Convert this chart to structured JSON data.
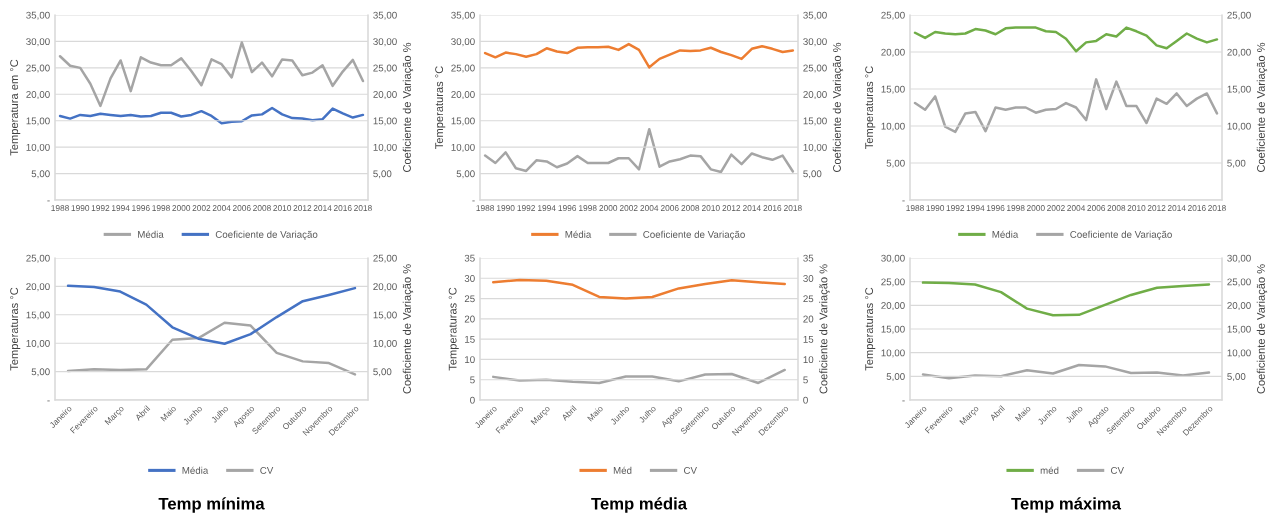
{
  "chart_data": [
    {
      "type": "line",
      "ylabel": "Temperatura em °C",
      "y2label": "Coeficiente de Variação %",
      "x": [
        1988,
        1989,
        1990,
        1991,
        1992,
        1993,
        1994,
        1995,
        1996,
        1997,
        1998,
        1999,
        2000,
        2001,
        2002,
        2003,
        2004,
        2005,
        2006,
        2007,
        2008,
        2009,
        2010,
        2011,
        2012,
        2013,
        2014,
        2015,
        2016,
        2017,
        2018
      ],
      "xlim": [
        1987.5,
        2018.5
      ],
      "xticks": [
        1988,
        1990,
        1992,
        1994,
        1996,
        1998,
        2000,
        2002,
        2004,
        2006,
        2008,
        2010,
        2012,
        2014,
        2016,
        2018
      ],
      "ylim": [
        0,
        35
      ],
      "yticks": [
        {
          "value": 0,
          "label": "-"
        },
        {
          "value": 5,
          "label": "5,00"
        },
        {
          "value": 10,
          "label": "10,00"
        },
        {
          "value": 15,
          "label": "15,00"
        },
        {
          "value": 20,
          "label": "20,00"
        },
        {
          "value": 25,
          "label": "25,00"
        },
        {
          "value": 30,
          "label": "30,00"
        },
        {
          "value": 35,
          "label": "35,00"
        }
      ],
      "y2lim": [
        0,
        35
      ],
      "y2ticks": [
        {
          "value": 5,
          "label": "5,00"
        },
        {
          "value": 10,
          "label": "10,00"
        },
        {
          "value": 15,
          "label": "15,00"
        },
        {
          "value": 20,
          "label": "20,00"
        },
        {
          "value": 25,
          "label": "25,00"
        },
        {
          "value": 30,
          "label": "30,00"
        },
        {
          "value": 35,
          "label": "35,00"
        }
      ],
      "grid": "y",
      "legend": "bottom",
      "series": [
        {
          "name": "Média",
          "color": "#a5a5a5",
          "values": [
            27.2,
            25.4,
            25.0,
            22.0,
            17.8,
            23.0,
            26.4,
            20.6,
            27.0,
            26.0,
            25.5,
            25.5,
            26.8,
            24.4,
            21.7,
            26.6,
            25.7,
            23.2,
            29.8,
            24.2,
            26.0,
            23.4,
            26.6,
            26.4,
            23.6,
            24.1,
            25.5,
            21.6,
            24.3,
            26.5,
            22.5
          ]
        },
        {
          "name": "Coeficiente de Variação",
          "color": "#4472c4",
          "axis": "y2",
          "values": [
            15.9,
            15.4,
            16.1,
            15.9,
            16.3,
            16.1,
            15.9,
            16.1,
            15.8,
            15.9,
            16.5,
            16.5,
            15.8,
            16.1,
            16.8,
            15.9,
            14.5,
            14.8,
            14.9,
            16.0,
            16.2,
            17.4,
            16.2,
            15.5,
            15.4,
            15.1,
            15.3,
            17.3,
            16.4,
            15.6,
            16.1
          ]
        }
      ]
    },
    {
      "type": "line",
      "ylabel": "Temperaturas °C",
      "y2label": "Coeficiente de Variação %",
      "x": [
        1988,
        1989,
        1990,
        1991,
        1992,
        1993,
        1994,
        1995,
        1996,
        1997,
        1998,
        1999,
        2000,
        2001,
        2002,
        2003,
        2004,
        2005,
        2006,
        2007,
        2008,
        2009,
        2010,
        2011,
        2012,
        2013,
        2014,
        2015,
        2016,
        2017,
        2018
      ],
      "xlim": [
        1987.5,
        2018.5
      ],
      "xticks": [
        1988,
        1990,
        1992,
        1994,
        1996,
        1998,
        2000,
        2002,
        2004,
        2006,
        2008,
        2010,
        2012,
        2014,
        2016,
        2018
      ],
      "ylim": [
        0,
        35
      ],
      "yticks": [
        {
          "value": 0,
          "label": "-"
        },
        {
          "value": 5,
          "label": "5,00"
        },
        {
          "value": 10,
          "label": "10,00"
        },
        {
          "value": 15,
          "label": "15,00"
        },
        {
          "value": 20,
          "label": "20,00"
        },
        {
          "value": 25,
          "label": "25,00"
        },
        {
          "value": 30,
          "label": "30,00"
        },
        {
          "value": 35,
          "label": "35,00"
        }
      ],
      "y2lim": [
        0,
        35
      ],
      "y2ticks": [
        {
          "value": 5,
          "label": "5,00"
        },
        {
          "value": 10,
          "label": "10,00"
        },
        {
          "value": 15,
          "label": "15,00"
        },
        {
          "value": 20,
          "label": "20,00"
        },
        {
          "value": 25,
          "label": "25,00"
        },
        {
          "value": 30,
          "label": "30,00"
        },
        {
          "value": 35,
          "label": "35,00"
        }
      ],
      "grid": "y",
      "legend": "bottom",
      "series": [
        {
          "name": "Média",
          "color": "#ed7d31",
          "values": [
            27.8,
            27.0,
            27.9,
            27.6,
            27.1,
            27.6,
            28.7,
            28.1,
            27.8,
            28.8,
            28.9,
            28.9,
            29.0,
            28.4,
            29.5,
            28.4,
            25.1,
            26.7,
            27.5,
            28.3,
            28.2,
            28.3,
            28.8,
            28.0,
            27.4,
            26.7,
            28.6,
            29.1,
            28.6,
            28.0,
            28.3
          ]
        },
        {
          "name": "Coeficiente de Variação",
          "color": "#a5a5a5",
          "axis": "y2",
          "values": [
            8.4,
            7.0,
            9.0,
            6.0,
            5.5,
            7.5,
            7.3,
            6.2,
            6.9,
            8.3,
            7.0,
            7.0,
            7.0,
            7.9,
            7.9,
            5.8,
            13.4,
            6.3,
            7.3,
            7.7,
            8.4,
            8.3,
            5.8,
            5.3,
            8.6,
            6.8,
            8.8,
            8.1,
            7.6,
            8.4,
            5.4
          ]
        }
      ]
    },
    {
      "type": "line",
      "ylabel": "Temperaturas °C",
      "y2label": "Coeficiente de Variação %",
      "x": [
        1988,
        1989,
        1990,
        1991,
        1992,
        1993,
        1994,
        1995,
        1996,
        1997,
        1998,
        1999,
        2000,
        2001,
        2002,
        2003,
        2004,
        2005,
        2006,
        2007,
        2008,
        2009,
        2010,
        2011,
        2012,
        2013,
        2014,
        2015,
        2016,
        2017,
        2018
      ],
      "xlim": [
        1987.5,
        2018.5
      ],
      "xticks": [
        1988,
        1990,
        1992,
        1994,
        1996,
        1998,
        2000,
        2002,
        2004,
        2006,
        2008,
        2010,
        2012,
        2014,
        2016,
        2018
      ],
      "ylim": [
        0,
        25
      ],
      "yticks": [
        {
          "value": 0,
          "label": "-"
        },
        {
          "value": 5,
          "label": "5,00"
        },
        {
          "value": 10,
          "label": "10,00"
        },
        {
          "value": 15,
          "label": "15,00"
        },
        {
          "value": 20,
          "label": "20,00"
        },
        {
          "value": 25,
          "label": "25,00"
        }
      ],
      "y2lim": [
        0,
        25
      ],
      "y2ticks": [
        {
          "value": 5,
          "label": "5,00"
        },
        {
          "value": 10,
          "label": "10,00"
        },
        {
          "value": 15,
          "label": "15,00"
        },
        {
          "value": 20,
          "label": "20,00"
        },
        {
          "value": 25,
          "label": "25,00"
        }
      ],
      "grid": "y",
      "legend": "bottom",
      "series": [
        {
          "name": "Média",
          "color": "#70ad47",
          "values": [
            22.6,
            21.9,
            22.7,
            22.5,
            22.4,
            22.5,
            23.1,
            22.9,
            22.4,
            23.2,
            23.3,
            23.3,
            23.3,
            22.8,
            22.7,
            21.8,
            20.1,
            21.3,
            21.5,
            22.4,
            22.1,
            23.3,
            22.8,
            22.2,
            20.9,
            20.5,
            21.5,
            22.5,
            21.8,
            21.3,
            21.7
          ]
        },
        {
          "name": "Coeficiente de Variação",
          "color": "#a5a5a5",
          "axis": "y2",
          "values": [
            13.1,
            12.2,
            14.0,
            9.9,
            9.2,
            11.7,
            11.9,
            9.3,
            12.5,
            12.2,
            12.5,
            12.5,
            11.8,
            12.2,
            12.3,
            13.1,
            12.5,
            10.8,
            16.3,
            12.3,
            16.0,
            12.7,
            12.7,
            10.4,
            13.7,
            13.0,
            14.4,
            12.7,
            13.7,
            14.4,
            11.7
          ]
        }
      ]
    },
    {
      "type": "line",
      "title": "Temp mínima",
      "ylabel": "Temperaturas °C",
      "y2label": "Coeficiente de Variação %",
      "categories": [
        "Janeiro",
        "Fevereiro",
        "Março",
        "Abril",
        "Maio",
        "Junho",
        "Julho",
        "Agosto",
        "Setembro",
        "Outubro",
        "Novembro",
        "Dezembro"
      ],
      "ylim": [
        0,
        25
      ],
      "yticks": [
        {
          "value": 0,
          "label": "-"
        },
        {
          "value": 5,
          "label": "5,00"
        },
        {
          "value": 10,
          "label": "10,00"
        },
        {
          "value": 15,
          "label": "15,00"
        },
        {
          "value": 20,
          "label": "20,00"
        },
        {
          "value": 25,
          "label": "25,00"
        }
      ],
      "y2lim": [
        0,
        25
      ],
      "y2ticks": [
        {
          "value": 5,
          "label": "5,00"
        },
        {
          "value": 10,
          "label": "10,00"
        },
        {
          "value": 15,
          "label": "15,00"
        },
        {
          "value": 20,
          "label": "20,00"
        },
        {
          "value": 25,
          "label": "25,00"
        }
      ],
      "grid": "y",
      "legend": "bottom",
      "series": [
        {
          "name": "Média",
          "color": "#4472c4",
          "values": [
            20.1,
            19.9,
            19.1,
            16.8,
            12.8,
            10.8,
            9.9,
            11.6,
            14.6,
            17.4,
            18.5,
            19.7
          ]
        },
        {
          "name": "CV",
          "color": "#a5a5a5",
          "axis": "y2",
          "values": [
            5.1,
            5.4,
            5.3,
            5.4,
            10.6,
            10.9,
            13.6,
            13.1,
            8.3,
            6.8,
            6.5,
            4.5
          ]
        }
      ]
    },
    {
      "type": "line",
      "title": "Temp média",
      "ylabel": "Temperaturas °C",
      "y2label": "Coeficiente de Variação %",
      "categories": [
        "Janeiro",
        "Fevereiro",
        "Março",
        "Abril",
        "Maio",
        "Junho",
        "Julho",
        "Agosto",
        "Setembro",
        "Outubro",
        "Novembro",
        "Dezembro"
      ],
      "ylim": [
        0,
        35
      ],
      "yticks": [
        0,
        5,
        10,
        15,
        20,
        25,
        30,
        35
      ],
      "y2lim": [
        0,
        35
      ],
      "y2ticks": [
        0,
        5,
        10,
        15,
        20,
        25,
        30,
        35
      ],
      "grid": "y",
      "legend": "bottom",
      "series": [
        {
          "name": "Méd",
          "color": "#ed7d31",
          "values": [
            29.0,
            29.6,
            29.4,
            28.4,
            25.4,
            25.0,
            25.4,
            27.5,
            28.6,
            29.5,
            29.0,
            28.6
          ]
        },
        {
          "name": "CV",
          "color": "#a5a5a5",
          "axis": "y2",
          "values": [
            5.7,
            4.8,
            5.0,
            4.5,
            4.2,
            5.8,
            5.8,
            4.6,
            6.3,
            6.4,
            4.2,
            7.4
          ]
        }
      ]
    },
    {
      "type": "line",
      "title": "Temp máxima",
      "ylabel": "Temperaturas °C",
      "y2label": "Coeficiente de Variação %",
      "categories": [
        "Janeiro",
        "Fevereiro",
        "Março",
        "Abril",
        "Maio",
        "Junho",
        "Julho",
        "Agosto",
        "Setembro",
        "Outubro",
        "Novembro",
        "Dezembro"
      ],
      "ylim": [
        0,
        30
      ],
      "yticks": [
        {
          "value": 0,
          "label": "-"
        },
        {
          "value": 5,
          "label": "5,00"
        },
        {
          "value": 10,
          "label": "10,00"
        },
        {
          "value": 15,
          "label": "15,00"
        },
        {
          "value": 20,
          "label": "20,00"
        },
        {
          "value": 25,
          "label": "25,00"
        },
        {
          "value": 30,
          "label": "30,00"
        }
      ],
      "y2lim": [
        0,
        30
      ],
      "y2ticks": [
        {
          "value": 5,
          "label": "5,00"
        },
        {
          "value": 10,
          "label": "10,00"
        },
        {
          "value": 15,
          "label": "15,00"
        },
        {
          "value": 20,
          "label": "20,00"
        },
        {
          "value": 25,
          "label": "25,00"
        },
        {
          "value": 30,
          "label": "30,00"
        }
      ],
      "grid": "y",
      "legend": "bottom",
      "series": [
        {
          "name": "méd",
          "color": "#70ad47",
          "values": [
            24.8,
            24.7,
            24.4,
            22.8,
            19.3,
            17.9,
            18.0,
            20.1,
            22.2,
            23.7,
            24.1,
            24.4
          ]
        },
        {
          "name": "CV",
          "color": "#a5a5a5",
          "axis": "y2",
          "values": [
            5.4,
            4.6,
            5.2,
            5.0,
            6.3,
            5.6,
            7.4,
            7.1,
            5.7,
            5.8,
            5.2,
            5.8
          ]
        }
      ]
    }
  ]
}
